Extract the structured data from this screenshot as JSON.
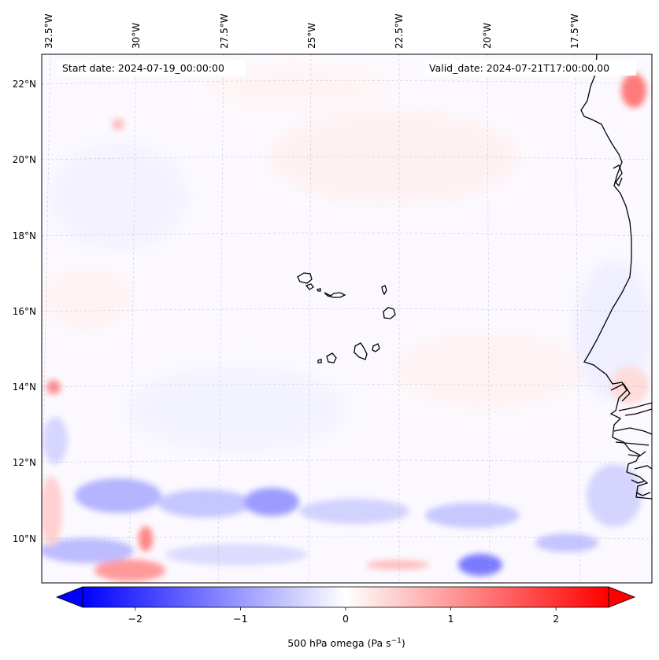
{
  "header": {
    "start_label": "Start date: 2024-07-19_00:00:00",
    "valid_label": "Valid_date: 2024-07-21T17:00:00.00"
  },
  "axes": {
    "lon_labels": [
      "32.5°W",
      "30°W",
      "27.5°W",
      "25°W",
      "22.5°W",
      "20°W",
      "17.5°W"
    ],
    "lat_labels": [
      "22°N",
      "20°N",
      "18°N",
      "16°N",
      "14°N",
      "12°N",
      "10°N"
    ],
    "gridlines": "dashed"
  },
  "colorbar": {
    "tick_labels": [
      "−2",
      "−1",
      "0",
      "1",
      "2"
    ],
    "ticks": [
      -2,
      -1,
      0,
      1,
      2
    ],
    "range": [
      -2.5,
      2.5
    ],
    "extend": "both",
    "label_main": "500 hPa omega (Pa s",
    "label_exp": "−1",
    "label_close": ")",
    "colormap": "bwr",
    "color_min": "#0000ff",
    "color_mid": "#ffffff",
    "color_max": "#ff0000"
  },
  "field": {
    "variable": "500 hPa omega",
    "background_value": 0.0
  }
}
